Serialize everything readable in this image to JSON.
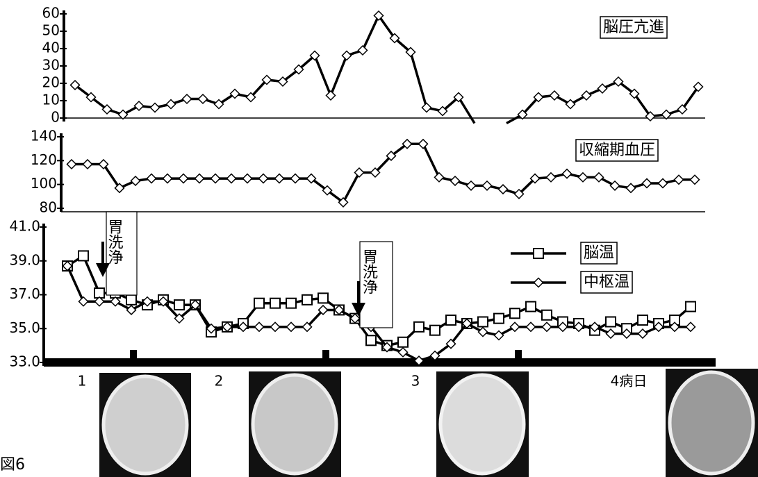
{
  "figure_label": "図6",
  "day_labels": [
    "1",
    "2",
    "3",
    "4病日"
  ],
  "chart_data": [
    {
      "type": "line",
      "title": "脳圧亢進",
      "ylim": [
        0,
        60
      ],
      "yticks": [
        0,
        10,
        20,
        30,
        40,
        50,
        60
      ],
      "color": "#000000",
      "marker": "diamond",
      "values": [
        19,
        12,
        5,
        2,
        7,
        6,
        8,
        11,
        11,
        8,
        14,
        12,
        22,
        21,
        28,
        36,
        13,
        36,
        39,
        59,
        46,
        38,
        6,
        4,
        12,
        -3,
        null,
        -3,
        2,
        12,
        13,
        8,
        13,
        17,
        21,
        14,
        1,
        2,
        5,
        18
      ]
    },
    {
      "type": "line",
      "title": "収縮期血圧",
      "ylim": [
        80,
        140
      ],
      "yticks": [
        80,
        100,
        120,
        140
      ],
      "color": "#000000",
      "marker": "diamond",
      "values": [
        117,
        117,
        117,
        97,
        103,
        105,
        105,
        105,
        105,
        105,
        105,
        105,
        105,
        105,
        105,
        105,
        95,
        85,
        110,
        110,
        124,
        134,
        134,
        106,
        103,
        99,
        99,
        96,
        92,
        105,
        106,
        109,
        106,
        106,
        99,
        97,
        101,
        101,
        104,
        104
      ]
    },
    {
      "type": "line",
      "ylim": [
        33,
        41
      ],
      "yticks": [
        {
          "value": 33,
          "label": "33.0"
        },
        {
          "value": 35,
          "label": "35.0"
        },
        {
          "value": 37,
          "label": "37.0"
        },
        {
          "value": 39,
          "label": "39.0"
        },
        {
          "value": 41,
          "label": "41.0"
        }
      ],
      "annotations": [
        "胃洗浄",
        "胃洗浄"
      ],
      "series": [
        {
          "name": "脳温",
          "color": "#000000",
          "marker": "square",
          "values": [
            38.7,
            39.3,
            37.1,
            37.1,
            36.7,
            36.4,
            36.7,
            36.4,
            36.4,
            34.8,
            35.1,
            35.3,
            36.5,
            36.5,
            36.5,
            36.7,
            36.8,
            36.1,
            35.6,
            34.3,
            34.0,
            34.2,
            35.1,
            34.9,
            35.5,
            35.3,
            35.4,
            35.6,
            35.9,
            36.3,
            35.8,
            35.4,
            35.3,
            34.9,
            35.4,
            35.0,
            35.5,
            35.3,
            35.5,
            36.3
          ]
        },
        {
          "name": "中枢温",
          "color": "#000000",
          "marker": "diamond",
          "values": [
            38.7,
            36.6,
            36.6,
            36.6,
            36.1,
            36.6,
            36.6,
            35.6,
            36.4,
            35.0,
            35.1,
            35.1,
            35.1,
            35.1,
            35.1,
            35.1,
            36.1,
            36.1,
            35.6,
            35.1,
            33.9,
            33.6,
            33.1,
            33.4,
            34.1,
            35.3,
            34.8,
            34.6,
            35.1,
            35.1,
            35.1,
            35.1,
            35.1,
            35.1,
            34.7,
            34.7,
            34.7,
            35.1,
            35.1,
            35.1
          ]
        }
      ]
    }
  ]
}
